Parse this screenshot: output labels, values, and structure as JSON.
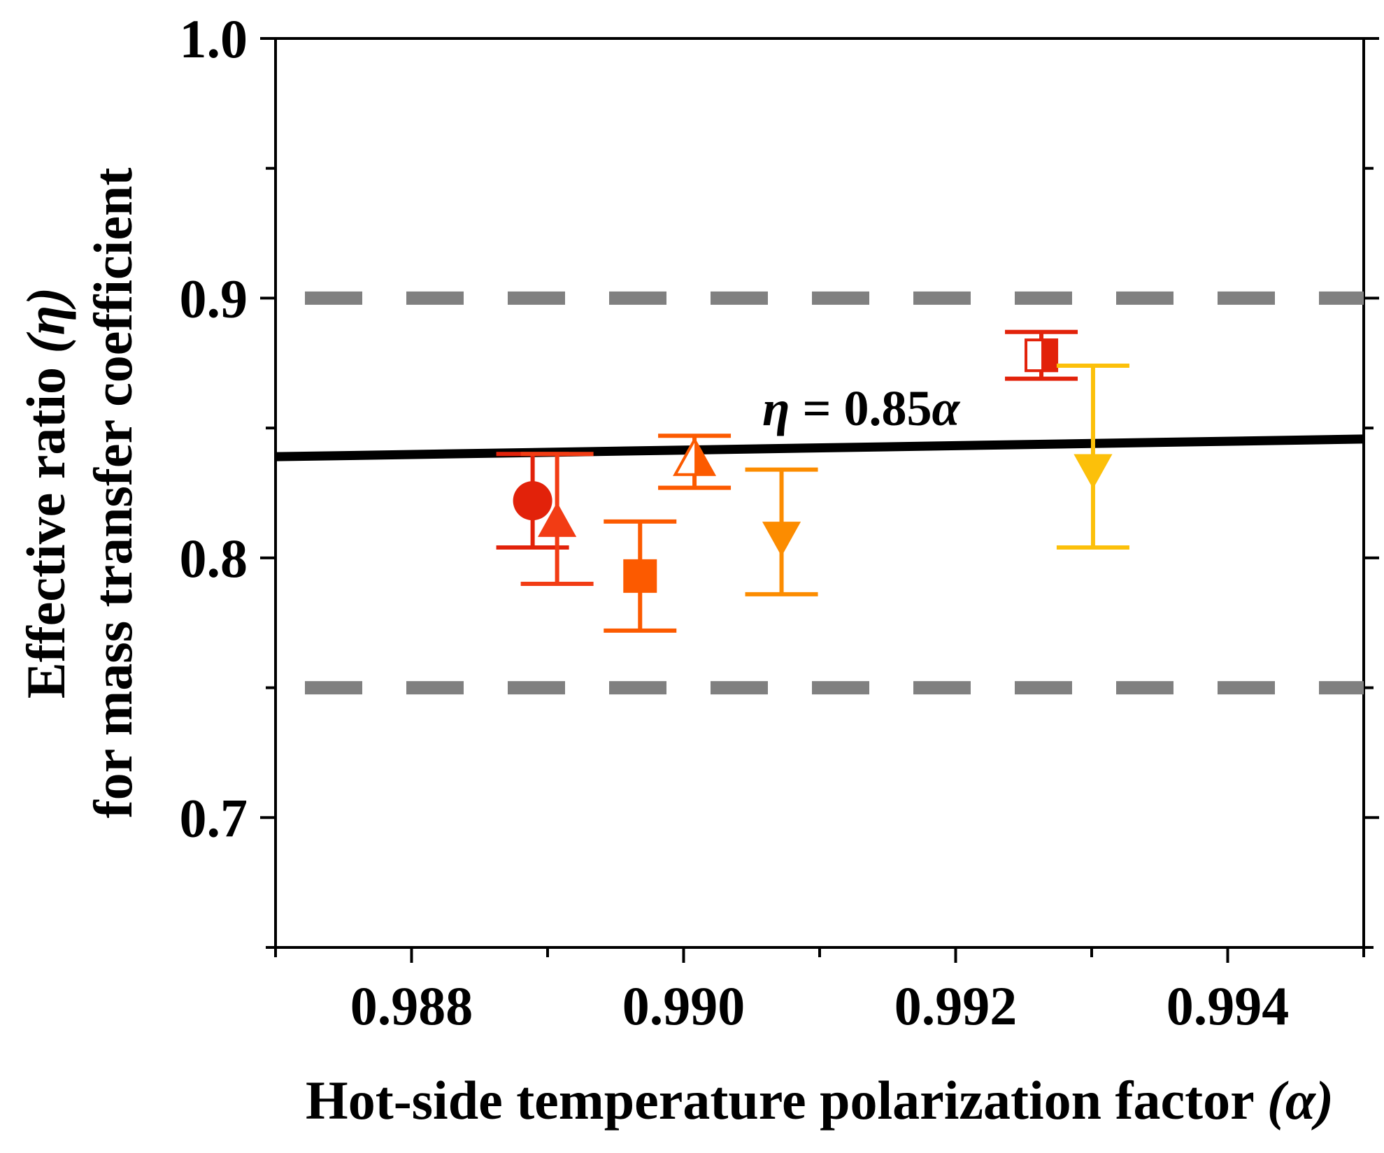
{
  "chart_data": {
    "type": "scatter",
    "xlabel": "Hot-side temperature polarization factor",
    "xlabel_symbol": "(α)",
    "ylabel_line1": "Effective ratio",
    "ylabel_line1_symbol": "(η)",
    "ylabel_line2": "for mass transfer coefficient",
    "xlim": [
      0.987,
      0.995
    ],
    "ylim": [
      0.65,
      1.0
    ],
    "x_ticks": [
      0.988,
      0.99,
      0.992,
      0.994
    ],
    "x_tick_labels": [
      "0.988",
      "0.990",
      "0.992",
      "0.994"
    ],
    "y_ticks": [
      0.7,
      0.8,
      0.9,
      1.0
    ],
    "y_tick_labels": [
      "0.7",
      "0.8",
      "0.9",
      "1.0"
    ],
    "fit_line": {
      "label_symbol": "η",
      "label_text": " = 0.85",
      "label_var": "α",
      "slope": 0.85,
      "color": "#000000"
    },
    "reference_lines": [
      {
        "y": 0.9,
        "style": "dashed",
        "color": "#808080"
      },
      {
        "y": 0.75,
        "style": "dashed",
        "color": "#808080"
      }
    ],
    "series": [
      {
        "x": 0.98889,
        "y": 0.822,
        "err_low": 0.804,
        "err_high": 0.84,
        "marker": "circle",
        "fill": "solid",
        "color": "#e2220a"
      },
      {
        "x": 0.98907,
        "y": 0.814,
        "err_low": 0.79,
        "err_high": 0.84,
        "marker": "triangle-up",
        "fill": "solid",
        "color": "#f23c14"
      },
      {
        "x": 0.98968,
        "y": 0.793,
        "err_low": 0.772,
        "err_high": 0.814,
        "marker": "square",
        "fill": "solid",
        "color": "#fc5a00"
      },
      {
        "x": 0.99008,
        "y": 0.838,
        "err_low": 0.827,
        "err_high": 0.847,
        "marker": "triangle-up",
        "fill": "half",
        "color": "#fc5a00"
      },
      {
        "x": 0.99072,
        "y": 0.808,
        "err_low": 0.786,
        "err_high": 0.834,
        "marker": "triangle-down",
        "fill": "solid",
        "color": "#fc8c00"
      },
      {
        "x": 0.99263,
        "y": 0.878,
        "err_low": 0.869,
        "err_high": 0.887,
        "marker": "square",
        "fill": "half",
        "color": "#e2220a"
      },
      {
        "x": 0.99301,
        "y": 0.834,
        "err_low": 0.804,
        "err_high": 0.874,
        "marker": "triangle-down",
        "fill": "solid",
        "color": "#fcc00a"
      }
    ]
  }
}
